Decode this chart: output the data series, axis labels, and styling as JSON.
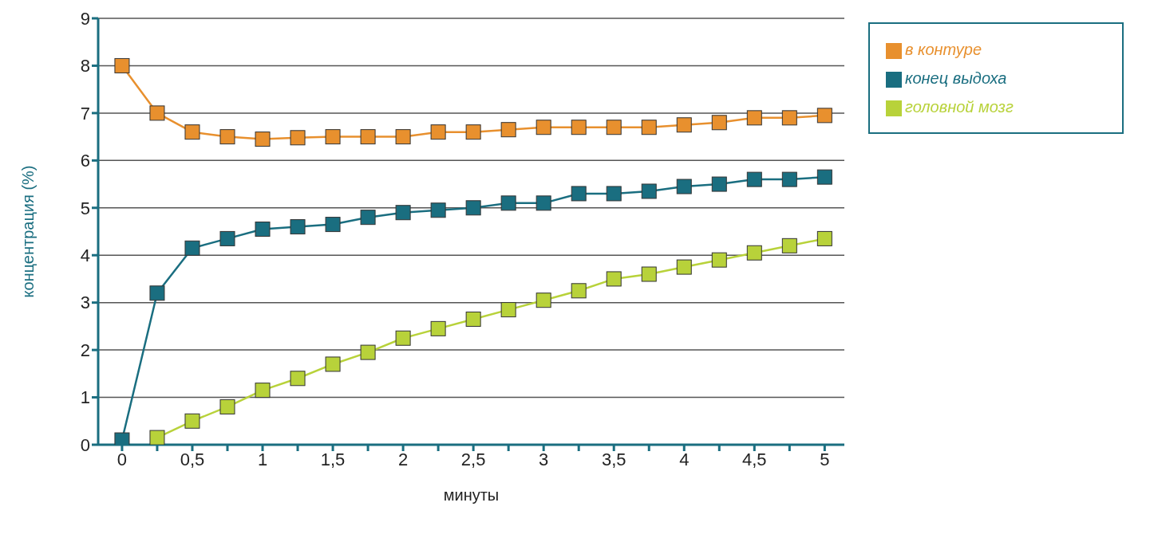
{
  "chart_data": {
    "type": "line",
    "xlabel": "минуты",
    "ylabel": "концентрация (%)",
    "x": [
      0,
      0.25,
      0.5,
      0.75,
      1,
      1.25,
      1.5,
      1.75,
      2,
      2.25,
      2.5,
      2.75,
      3,
      3.25,
      3.5,
      3.75,
      4,
      4.25,
      4.5,
      4.75,
      5
    ],
    "series": [
      {
        "name": "в контуре",
        "color": "#e8902e",
        "values": [
          8,
          7,
          6.6,
          6.5,
          6.45,
          6.48,
          6.5,
          6.5,
          6.5,
          6.6,
          6.6,
          6.65,
          6.7,
          6.7,
          6.7,
          6.7,
          6.75,
          6.8,
          6.9,
          6.9,
          6.95
        ]
      },
      {
        "name": "конец выдоха",
        "color": "#1a6e80",
        "values": [
          0.1,
          3.2,
          4.15,
          4.35,
          4.55,
          4.6,
          4.65,
          4.8,
          4.9,
          4.95,
          5,
          5.1,
          5.1,
          5.3,
          5.3,
          5.35,
          5.45,
          5.5,
          5.6,
          5.6,
          5.65
        ]
      },
      {
        "name": "головной мозг",
        "color": "#b8d23a",
        "values": [
          null,
          0.15,
          0.5,
          0.8,
          1.15,
          1.4,
          1.7,
          1.95,
          2.25,
          2.45,
          2.65,
          2.85,
          3.05,
          3.25,
          3.5,
          3.6,
          3.75,
          3.9,
          4.05,
          4.2,
          4.35
        ]
      }
    ],
    "xlim": [
      -0.17,
      5.14
    ],
    "xticks": [
      0,
      {
        "value": 0.25,
        "label": null
      },
      {
        "value": 0.5,
        "label": "0,5"
      },
      {
        "value": 0.75,
        "label": null
      },
      1,
      {
        "value": 1.25,
        "label": null
      },
      {
        "value": 1.5,
        "label": "1,5"
      },
      {
        "value": 1.75,
        "label": null
      },
      2,
      {
        "value": 2.25,
        "label": null
      },
      {
        "value": 2.5,
        "label": "2,5"
      },
      {
        "value": 2.75,
        "label": null
      },
      3,
      {
        "value": 3.25,
        "label": null
      },
      {
        "value": 3.5,
        "label": "3,5"
      },
      {
        "value": 3.75,
        "label": null
      },
      4,
      {
        "value": 4.25,
        "label": null
      },
      {
        "value": 4.5,
        "label": "4,5"
      },
      {
        "value": 4.75,
        "label": null
      },
      5
    ],
    "ylim": [
      0,
      9
    ],
    "yticks": [
      0,
      1,
      2,
      3,
      4,
      5,
      6,
      7,
      8,
      9
    ],
    "grid": "y",
    "legend": "right",
    "marker": "square",
    "line_style": "solid"
  }
}
